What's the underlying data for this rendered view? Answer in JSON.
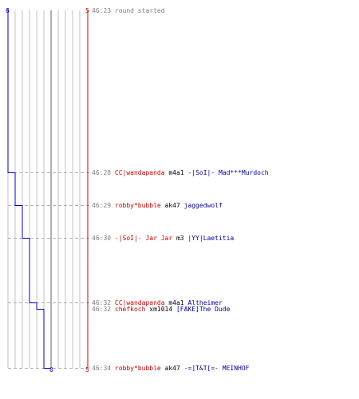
{
  "axis": {
    "left_top": "6",
    "left_bottom": "0",
    "right_top": "5",
    "right_bottom": "5"
  },
  "colors": {
    "blue_team": "#0000cc",
    "red_team": "#cc0000",
    "grid": "#c0c0c0",
    "center": "#606060",
    "dash": "#b0b0b0",
    "time": "#808080"
  },
  "events": [
    {
      "time": "46:23",
      "message": "round started",
      "blue_score": 6
    },
    {
      "time": "46:28",
      "killer": "CC|wandapanda",
      "weapon": "m4a1",
      "victim": "-|SoI|- Mad***Murdoch",
      "blue_score": 5
    },
    {
      "time": "46:29",
      "killer": "robby*bubble",
      "weapon": "ak47",
      "victim": "jaggedwolf",
      "blue_score": 4
    },
    {
      "time": "46:30",
      "killer": "-|SoI|- Jar Jar",
      "weapon": "m3",
      "victim": "|YY|Laetitia",
      "blue_score": 3
    },
    {
      "time": "46:32",
      "killer": "CC|wandapanda",
      "weapon": "m4a1",
      "victim": "Altheimer",
      "blue_score": 2
    },
    {
      "time": "46:32",
      "killer": "chefkoch",
      "weapon": "xm1014",
      "victim": "[FAKE]The Dude",
      "blue_score": 1
    },
    {
      "time": "46:34",
      "killer": "robby*bubble",
      "weapon": "ak47",
      "victim": "-=]T&T[=- MEINHOF",
      "blue_score": 0
    }
  ]
}
